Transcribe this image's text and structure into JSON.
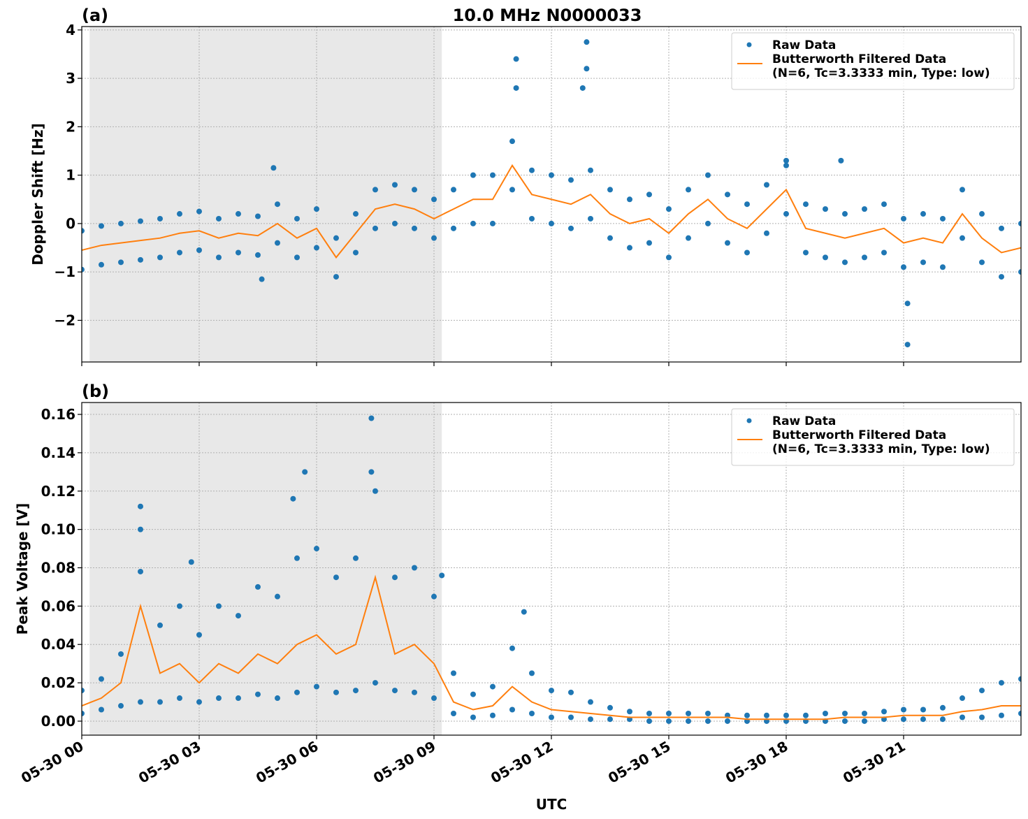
{
  "chart_data": [
    {
      "type": "scatter",
      "title": "10.0 MHz N0000033",
      "panel_label": "(a)",
      "y_label": "Doppler Shift [Hz]",
      "xlim": [
        0,
        24
      ],
      "xticks": [
        {
          "value": 0,
          "label": "05-30 00"
        },
        {
          "value": 3,
          "label": "05-30 03"
        },
        {
          "value": 6,
          "label": "05-30 06"
        },
        {
          "value": 9,
          "label": "05-30 09"
        },
        {
          "value": 12,
          "label": "05-30 12"
        },
        {
          "value": 15,
          "label": "05-30 15"
        },
        {
          "value": 18,
          "label": "05-30 18"
        },
        {
          "value": 21,
          "label": "05-30 21"
        }
      ],
      "show_xtick_labels": false,
      "ylim": [
        -2.86,
        4.07
      ],
      "yticks": [
        {
          "value": -2,
          "label": "−2"
        },
        {
          "value": -1,
          "label": "−1"
        },
        0,
        1,
        2,
        3,
        4
      ],
      "grid": true,
      "shade": [
        0.2,
        9.2
      ],
      "legend": "upper right",
      "series": [
        {
          "name": "Raw Data",
          "color": "#1f77b4",
          "mode": "markers",
          "x": [
            0,
            0,
            0.5,
            0.5,
            1,
            1,
            1.5,
            1.5,
            2,
            2,
            2.5,
            2.5,
            3,
            3,
            3.5,
            3.5,
            4,
            4,
            4.5,
            4.5,
            5,
            5,
            5.5,
            5.5,
            6,
            6,
            6.5,
            6.5,
            7,
            7,
            7.5,
            7.5,
            8,
            8,
            8.5,
            8.5,
            9,
            9,
            9.5,
            9.5,
            10,
            10,
            10.5,
            10.5,
            11,
            11,
            11.5,
            11.5,
            12,
            12,
            12.5,
            12.5,
            13,
            13,
            13.5,
            13.5,
            14,
            14,
            14.5,
            14.5,
            15,
            15,
            15.5,
            15.5,
            16,
            16,
            16.5,
            16.5,
            17,
            17,
            17.5,
            17.5,
            18,
            18,
            18.5,
            18.5,
            19,
            19,
            19.5,
            19.5,
            20,
            20,
            20.5,
            20.5,
            21,
            21,
            21.5,
            21.5,
            22,
            22,
            22.5,
            22.5,
            23,
            23,
            23.5,
            23.5,
            24,
            24,
            4.9,
            11.1,
            11.1,
            12.9,
            12.9,
            12.8,
            18,
            19.4,
            21.1,
            21.1,
            4.6
          ],
          "values": [
            -0.15,
            -0.95,
            -0.05,
            -0.85,
            0.0,
            -0.8,
            0.05,
            -0.75,
            0.1,
            -0.7,
            0.2,
            -0.6,
            0.25,
            -0.55,
            0.1,
            -0.7,
            0.2,
            -0.6,
            0.15,
            -0.65,
            0.4,
            -0.4,
            0.1,
            -0.7,
            0.3,
            -0.5,
            -0.3,
            -1.1,
            0.2,
            -0.6,
            0.7,
            -0.1,
            0.8,
            0.0,
            0.7,
            -0.1,
            0.5,
            -0.3,
            0.7,
            -0.1,
            1.0,
            0.0,
            1.0,
            0.0,
            1.7,
            0.7,
            1.1,
            0.1,
            1.0,
            0.0,
            0.9,
            -0.1,
            1.1,
            0.1,
            0.7,
            -0.3,
            0.5,
            -0.5,
            0.6,
            -0.4,
            0.3,
            -0.7,
            0.7,
            -0.3,
            1.0,
            0.0,
            0.6,
            -0.4,
            0.4,
            -0.6,
            0.8,
            -0.2,
            1.2,
            0.2,
            0.4,
            -0.6,
            0.3,
            -0.7,
            0.2,
            -0.8,
            0.3,
            -0.7,
            0.4,
            -0.6,
            0.1,
            -0.9,
            0.2,
            -0.8,
            0.1,
            -0.9,
            0.7,
            -0.3,
            0.2,
            -0.8,
            -0.1,
            -1.1,
            0.0,
            -1.0,
            1.15,
            3.4,
            2.8,
            3.75,
            3.2,
            2.8,
            1.3,
            1.3,
            -1.65,
            -2.5,
            -1.15
          ]
        },
        {
          "name": "Butterworth Filtered Data\n(N=6, Tc=3.3333 min, Type: low)",
          "color": "#ff7f0e",
          "mode": "line",
          "x": [
            0,
            0.5,
            1,
            1.5,
            2,
            2.5,
            3,
            3.5,
            4,
            4.5,
            5,
            5.5,
            6,
            6.5,
            7,
            7.5,
            8,
            8.5,
            9,
            9.5,
            10,
            10.5,
            11,
            11.5,
            12,
            12.5,
            13,
            13.5,
            14,
            14.5,
            15,
            15.5,
            16,
            16.5,
            17,
            17.5,
            18,
            18.5,
            19,
            19.5,
            20,
            20.5,
            21,
            21.5,
            22,
            22.5,
            23,
            23.5,
            24
          ],
          "values": [
            -0.55,
            -0.45,
            -0.4,
            -0.35,
            -0.3,
            -0.2,
            -0.15,
            -0.3,
            -0.2,
            -0.25,
            0.0,
            -0.3,
            -0.1,
            -0.7,
            -0.2,
            0.3,
            0.4,
            0.3,
            0.1,
            0.3,
            0.5,
            0.5,
            1.2,
            0.6,
            0.5,
            0.4,
            0.6,
            0.2,
            0.0,
            0.1,
            -0.2,
            0.2,
            0.5,
            0.1,
            -0.1,
            0.3,
            0.7,
            -0.1,
            -0.2,
            -0.3,
            -0.2,
            -0.1,
            -0.4,
            -0.3,
            -0.4,
            0.2,
            -0.3,
            -0.6,
            -0.5
          ]
        }
      ]
    },
    {
      "type": "scatter",
      "panel_label": "(b)",
      "y_label": "Peak Voltage [V]",
      "x_label": "UTC",
      "xlim": [
        0,
        24
      ],
      "xticks": [
        {
          "value": 0,
          "label": "05-30 00"
        },
        {
          "value": 3,
          "label": "05-30 03"
        },
        {
          "value": 6,
          "label": "05-30 06"
        },
        {
          "value": 9,
          "label": "05-30 09"
        },
        {
          "value": 12,
          "label": "05-30 12"
        },
        {
          "value": 15,
          "label": "05-30 15"
        },
        {
          "value": 18,
          "label": "05-30 18"
        },
        {
          "value": 21,
          "label": "05-30 21"
        }
      ],
      "show_xtick_labels": true,
      "ylim": [
        -0.0073,
        0.1662
      ],
      "yticks": [
        {
          "value": 0,
          "label": "0.00"
        },
        {
          "value": 0.02,
          "label": "0.02"
        },
        {
          "value": 0.04,
          "label": "0.04"
        },
        {
          "value": 0.06,
          "label": "0.06"
        },
        {
          "value": 0.08,
          "label": "0.08"
        },
        {
          "value": 0.1,
          "label": "0.10"
        },
        {
          "value": 0.12,
          "label": "0.12"
        },
        {
          "value": 0.14,
          "label": "0.14"
        },
        {
          "value": 0.16,
          "label": "0.16"
        }
      ],
      "grid": true,
      "shade": [
        0.2,
        9.2
      ],
      "legend": "upper right",
      "series": [
        {
          "name": "Raw Data",
          "color": "#1f77b4",
          "mode": "markers",
          "x": [
            0,
            0,
            0.5,
            0.5,
            1,
            1,
            1.5,
            1.5,
            2,
            2,
            2.5,
            2.5,
            3,
            3,
            3.5,
            3.5,
            4,
            4,
            4.5,
            4.5,
            5,
            5,
            5.5,
            5.5,
            6,
            6,
            6.5,
            6.5,
            7,
            7,
            7.5,
            7.5,
            8,
            8,
            8.5,
            8.5,
            9,
            9,
            9.5,
            9.5,
            10,
            10,
            10.5,
            10.5,
            11,
            11,
            11.5,
            11.5,
            12,
            12,
            12.5,
            12.5,
            13,
            13,
            13.5,
            13.5,
            14,
            14,
            14.5,
            14.5,
            15,
            15,
            15.5,
            15.5,
            16,
            16,
            16.5,
            16.5,
            17,
            17,
            17.5,
            17.5,
            18,
            18,
            18.5,
            18.5,
            19,
            19,
            19.5,
            19.5,
            20,
            20,
            20.5,
            20.5,
            21,
            21,
            21.5,
            21.5,
            22,
            22,
            22.5,
            22.5,
            23,
            23,
            23.5,
            23.5,
            24,
            24,
            1.5,
            1.5,
            7.4,
            7.4,
            5.7,
            5.4,
            11.3,
            2.8,
            9.2
          ],
          "values": [
            0.016,
            0.004,
            0.022,
            0.006,
            0.035,
            0.008,
            0.078,
            0.01,
            0.05,
            0.01,
            0.06,
            0.012,
            0.045,
            0.01,
            0.06,
            0.012,
            0.055,
            0.012,
            0.07,
            0.014,
            0.065,
            0.012,
            0.085,
            0.015,
            0.09,
            0.018,
            0.075,
            0.015,
            0.085,
            0.016,
            0.12,
            0.02,
            0.075,
            0.016,
            0.08,
            0.015,
            0.065,
            0.012,
            0.025,
            0.004,
            0.014,
            0.002,
            0.018,
            0.003,
            0.038,
            0.006,
            0.025,
            0.004,
            0.016,
            0.002,
            0.015,
            0.002,
            0.01,
            0.001,
            0.007,
            0.001,
            0.005,
            0.001,
            0.004,
            0,
            0.004,
            0,
            0.004,
            0,
            0.004,
            0,
            0.003,
            0,
            0.003,
            0,
            0.003,
            0,
            0.003,
            0,
            0.003,
            0,
            0.004,
            0,
            0.004,
            0,
            0.004,
            0,
            0.005,
            0.001,
            0.006,
            0.001,
            0.006,
            0.001,
            0.007,
            0.001,
            0.012,
            0.002,
            0.016,
            0.002,
            0.02,
            0.003,
            0.022,
            0.004,
            0.112,
            0.1,
            0.158,
            0.13,
            0.13,
            0.116,
            0.057,
            0.083,
            0.076
          ]
        },
        {
          "name": "Butterworth Filtered Data\n(N=6, Tc=3.3333 min, Type: low)",
          "color": "#ff7f0e",
          "mode": "line",
          "x": [
            0,
            0.5,
            1,
            1.5,
            2,
            2.5,
            3,
            3.5,
            4,
            4.5,
            5,
            5.5,
            6,
            6.5,
            7,
            7.5,
            8,
            8.5,
            9,
            9.5,
            10,
            10.5,
            11,
            11.5,
            12,
            12.5,
            13,
            13.5,
            14,
            14.5,
            15,
            15.5,
            16,
            16.5,
            17,
            17.5,
            18,
            18.5,
            19,
            19.5,
            20,
            20.5,
            21,
            21.5,
            22,
            22.5,
            23,
            23.5,
            24
          ],
          "values": [
            0.008,
            0.012,
            0.02,
            0.06,
            0.025,
            0.03,
            0.02,
            0.03,
            0.025,
            0.035,
            0.03,
            0.04,
            0.045,
            0.035,
            0.04,
            0.075,
            0.035,
            0.04,
            0.03,
            0.01,
            0.006,
            0.008,
            0.018,
            0.01,
            0.006,
            0.005,
            0.004,
            0.003,
            0.002,
            0.002,
            0.002,
            0.002,
            0.002,
            0.002,
            0.001,
            0.001,
            0.001,
            0.001,
            0.001,
            0.002,
            0.002,
            0.002,
            0.003,
            0.003,
            0.003,
            0.005,
            0.006,
            0.008,
            0.008
          ]
        }
      ]
    }
  ]
}
